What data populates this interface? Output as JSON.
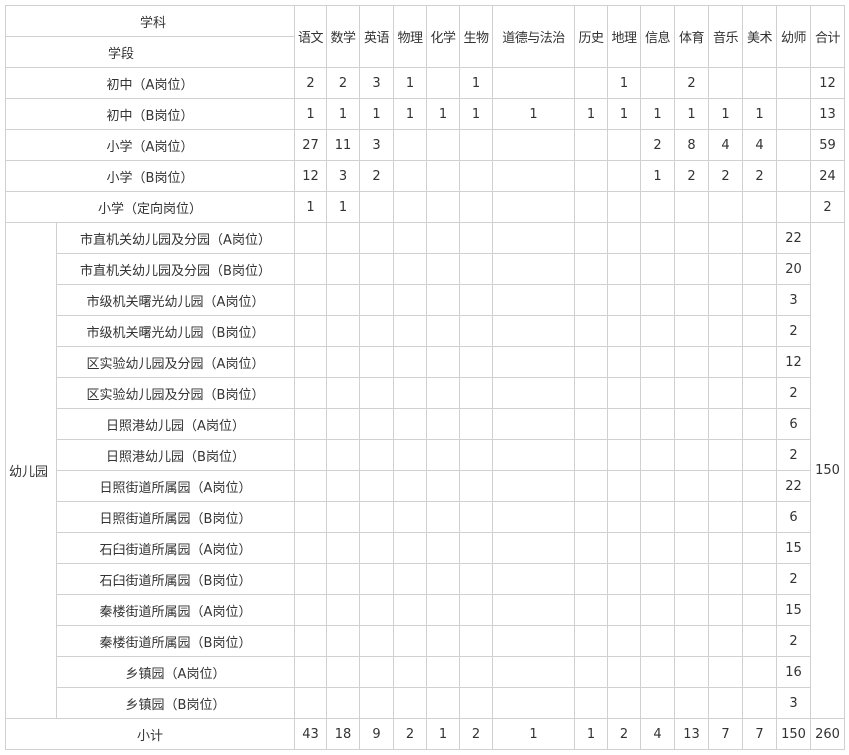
{
  "header": {
    "subject_label": "学科",
    "stage_label": "学段",
    "subjects": [
      "语文",
      "数学",
      "英语",
      "物理",
      "化学",
      "生物",
      "道德与法治",
      "历史",
      "地理",
      "信息",
      "体育",
      "音乐",
      "美术",
      "幼师",
      "合计"
    ]
  },
  "rows": [
    {
      "label": "初中（A岗位）",
      "values": [
        "2",
        "2",
        "3",
        "1",
        "",
        "1",
        "",
        "",
        "1",
        "",
        "2",
        "",
        "",
        "",
        "12"
      ]
    },
    {
      "label": "初中（B岗位）",
      "values": [
        "1",
        "1",
        "1",
        "1",
        "1",
        "1",
        "1",
        "1",
        "1",
        "1",
        "1",
        "1",
        "1",
        "",
        "13"
      ]
    },
    {
      "label": "小学（A岗位）",
      "values": [
        "27",
        "11",
        "3",
        "",
        "",
        "",
        "",
        "",
        "",
        "2",
        "8",
        "4",
        "4",
        "",
        "59"
      ]
    },
    {
      "label": "小学（B岗位）",
      "values": [
        "12",
        "3",
        "2",
        "",
        "",
        "",
        "",
        "",
        "",
        "1",
        "2",
        "2",
        "2",
        "",
        "24"
      ]
    },
    {
      "label": "小学（定向岗位）",
      "values": [
        "1",
        "1",
        "",
        "",
        "",
        "",
        "",
        "",
        "",
        "",
        "",
        "",
        "",
        "",
        "2"
      ]
    }
  ],
  "kindergarten": {
    "label": "幼儿园",
    "total": "150",
    "rows": [
      {
        "label": "市直机关幼儿园及分园（A岗位）",
        "teachers": "22"
      },
      {
        "label": "市直机关幼儿园及分园（B岗位）",
        "teachers": "20"
      },
      {
        "label": "市级机关曙光幼儿园（A岗位）",
        "teachers": "3"
      },
      {
        "label": "市级机关曙光幼儿园（B岗位）",
        "teachers": "2"
      },
      {
        "label": "区实验幼儿园及分园（A岗位）",
        "teachers": "12"
      },
      {
        "label": "区实验幼儿园及分园（B岗位）",
        "teachers": "2"
      },
      {
        "label": "日照港幼儿园（A岗位）",
        "teachers": "6"
      },
      {
        "label": "日照港幼儿园（B岗位）",
        "teachers": "2"
      },
      {
        "label": "日照街道所属园（A岗位）",
        "teachers": "22"
      },
      {
        "label": "日照街道所属园（B岗位）",
        "teachers": "6"
      },
      {
        "label": "石臼街道所属园（A岗位）",
        "teachers": "15"
      },
      {
        "label": "石臼街道所属园（B岗位）",
        "teachers": "2"
      },
      {
        "label": "秦楼街道所属园（A岗位）",
        "teachers": "15"
      },
      {
        "label": "秦楼街道所属园（B岗位）",
        "teachers": "2"
      },
      {
        "label": "乡镇园（A岗位）",
        "teachers": "16"
      },
      {
        "label": "乡镇园（B岗位）",
        "teachers": "3"
      }
    ]
  },
  "subtotal": {
    "label": "小计",
    "values": [
      "43",
      "18",
      "9",
      "2",
      "1",
      "2",
      "1",
      "1",
      "2",
      "4",
      "13",
      "7",
      "7",
      "150",
      "260"
    ]
  }
}
